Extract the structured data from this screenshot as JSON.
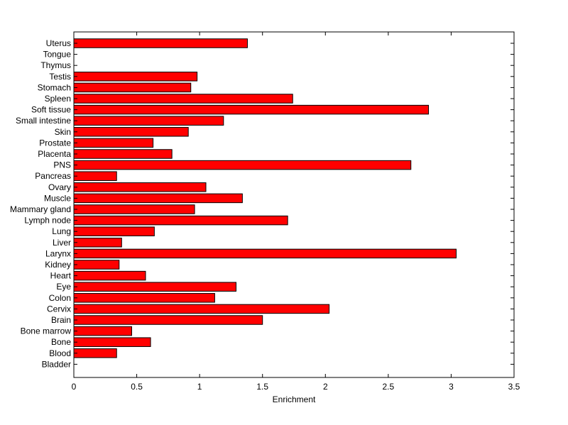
{
  "chart_data": {
    "type": "bar",
    "orientation": "horizontal",
    "xlabel": "Enrichment",
    "ylabel": "",
    "title": "",
    "xlim": [
      0,
      3.5
    ],
    "xticks": [
      "0",
      "0.5",
      "1",
      "1.5",
      "2",
      "2.5",
      "3",
      "3.5"
    ],
    "categories": [
      "Uterus",
      "Tongue",
      "Thymus",
      "Testis",
      "Stomach",
      "Spleen",
      "Soft tissue",
      "Small intestine",
      "Skin",
      "Prostate",
      "Placenta",
      "PNS",
      "Pancreas",
      "Ovary",
      "Muscle",
      "Mammary gland",
      "Lymph node",
      "Lung",
      "Liver",
      "Larynx",
      "Kidney",
      "Heart",
      "Eye",
      "Colon",
      "Cervix",
      "Brain",
      "Bone marrow",
      "Bone",
      "Blood",
      "Bladder"
    ],
    "values": [
      1.38,
      0,
      0,
      0.98,
      0.93,
      1.74,
      2.82,
      1.19,
      0.91,
      0.63,
      0.78,
      2.68,
      0.34,
      1.05,
      1.34,
      0.96,
      1.7,
      0.64,
      0.38,
      3.04,
      0.36,
      0.57,
      1.29,
      1.12,
      2.03,
      1.5,
      0.46,
      0.61,
      0.34,
      0
    ],
    "bar_color": "#ff0000",
    "edge_color": "#000000",
    "grid": false,
    "legend": "none"
  }
}
